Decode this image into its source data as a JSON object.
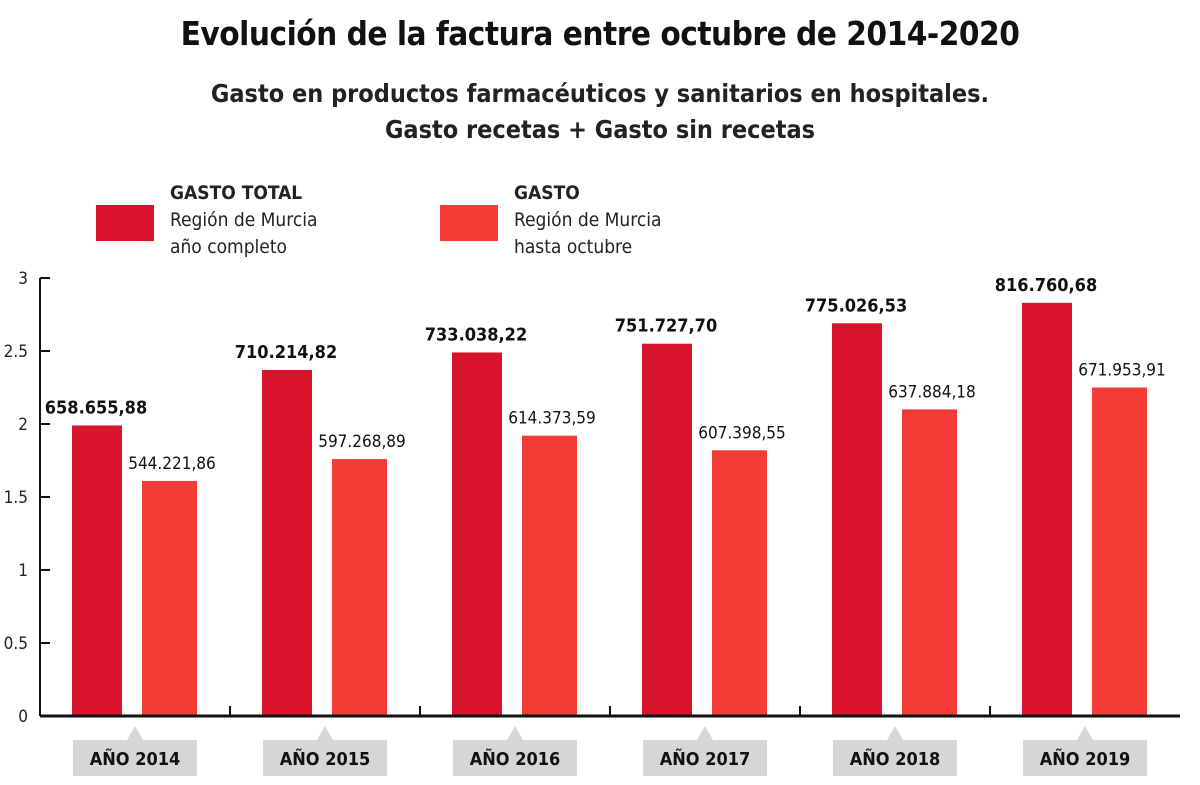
{
  "title": "Evolución de la factura entre octubre de 2014-2020",
  "subtitle_line1": "Gasto en productos farmacéuticos y sanitarios en hospitales.",
  "subtitle_line2": "Gasto recetas + Gasto sin recetas",
  "chart_data": {
    "type": "bar",
    "ylim": [
      0,
      3
    ],
    "yticks": [
      "0",
      "0.5",
      "1",
      "1.5",
      "2",
      "2.5",
      "3"
    ],
    "categories": [
      "AÑO 2014",
      "AÑO 2015",
      "AÑO 2016",
      "AÑO 2017",
      "AÑO 2018",
      "AÑO 2019"
    ],
    "series": [
      {
        "name": "GASTO TOTAL",
        "legend_line1": "Región de Murcia",
        "legend_line2": "año completo",
        "color": "#d7142a",
        "values": [
          1.99,
          2.37,
          2.49,
          2.55,
          2.69,
          2.83
        ],
        "labels": [
          "658.655,88",
          "710.214,82",
          "733.038,22",
          "751.727,70",
          "775.026,53",
          "816.760,68"
        ]
      },
      {
        "name": "GASTO",
        "legend_line1": "Región de Murcia",
        "legend_line2": "hasta octubre",
        "color": "#f43b35",
        "values": [
          1.61,
          1.76,
          1.92,
          1.82,
          2.1,
          2.25
        ],
        "labels": [
          "544.221,86",
          "597.268,89",
          "614.373,59",
          "607.398,55",
          "637.884,18",
          "671.953,91"
        ]
      }
    ],
    "legend_position": "top-left",
    "grid": false
  }
}
